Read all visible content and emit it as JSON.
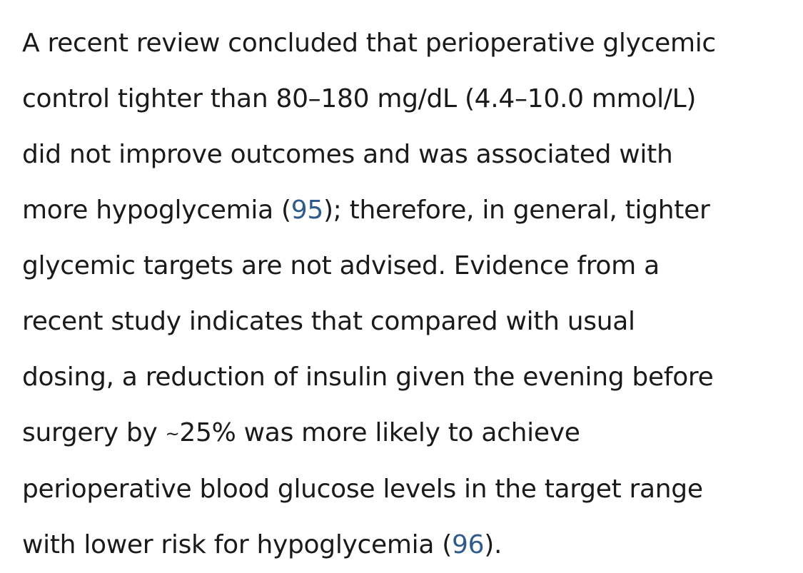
{
  "paragraph": {
    "line1": "A recent review concluded that perioperative glycemic",
    "line2": "control tighter than 80–180 mg/dL (4.4–10.0 mmol/L)",
    "line3": "did not improve outcomes and was associated with",
    "line4_before": "more hypoglycemia (",
    "ref_95": "95",
    "line4_after": "); therefore, in general, tighter",
    "line5": "glycemic targets are not advised. Evidence from a",
    "line6": "recent study indicates that compared with usual",
    "line7": "dosing, a reduction of insulin given the evening before",
    "line8_before": "surgery by ",
    "tilde": "~",
    "line8_after": "25% was more likely to achieve",
    "line9": "perioperative blood glucose levels in the target range",
    "line10_before": "with lower risk for hypoglycemia (",
    "ref_96": "96",
    "line10_after": ")."
  },
  "colors": {
    "text": "#1a1a1a",
    "link": "#2f5b8a",
    "background": "#ffffff"
  }
}
